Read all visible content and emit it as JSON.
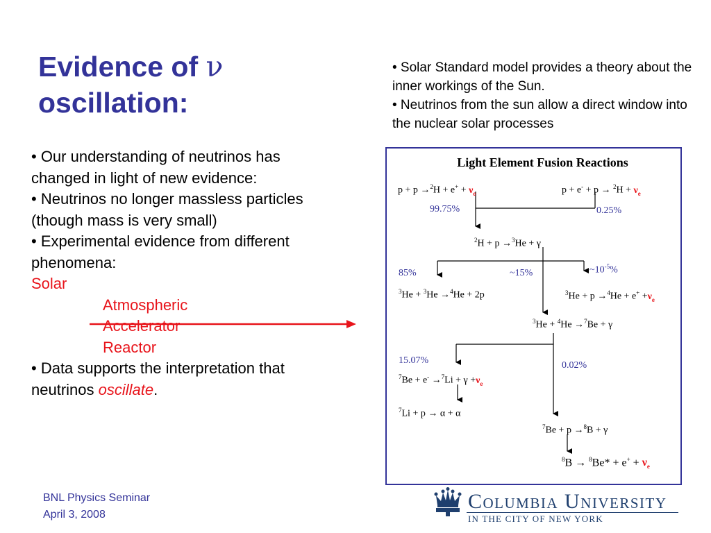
{
  "title": {
    "line1": "Evidence of",
    "nu": "ν",
    "line2": "oscillation:"
  },
  "left_bullets": {
    "b1": "• Our understanding of neutrinos has changed in light of new evidence:",
    "b2": "• Neutrinos no longer massless particles (though mass is very small)",
    "b3": "• Experimental evidence from different phenomena:",
    "solar": "Solar",
    "atmospheric": "Atmospheric",
    "accelerator": "Accelerator",
    "reactor": "Reactor",
    "b4_pre": "• Data supports the interpretation that neutrinos ",
    "b4_em": "oscillate",
    "b4_post": "."
  },
  "right_bullets": {
    "b1": "• Solar Standard model provides a theory about the inner workings of the Sun.",
    "b2": "• Neutrinos from the sun allow a direct window into the nuclear solar processes"
  },
  "diagram": {
    "title": "Light Element Fusion Reactions",
    "pct_9975": "99.75%",
    "pct_025": "0.25%",
    "pct_85": "85%",
    "pct_15": "~15%",
    "pct_1e5_base": "~10",
    "pct_1e5_exp": "-5",
    "pct_1e5_unit": "%",
    "pct_1507": "15.07%",
    "pct_002": "0.02%"
  },
  "footer": {
    "line1": "BNL Physics Seminar",
    "line2": "April 3, 2008"
  },
  "logo": {
    "name": "Columbia University",
    "sub": "IN THE CITY OF NEW YORK"
  },
  "colors": {
    "title_blue": "#333399",
    "accent_red": "#e8141b",
    "logo_navy": "#1f3f6e"
  }
}
